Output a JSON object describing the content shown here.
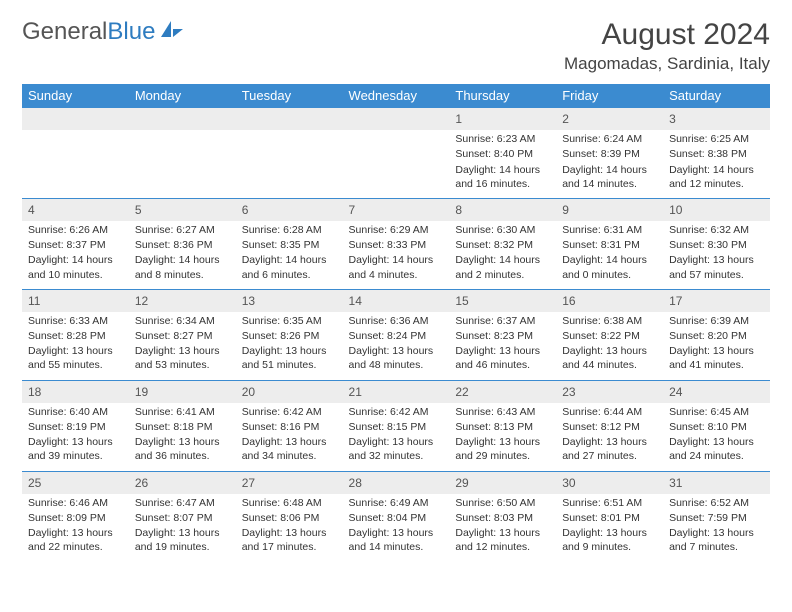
{
  "logo": {
    "text_part1": "General",
    "text_part2": "Blue"
  },
  "header": {
    "month_title": "August 2024",
    "location": "Magomadas, Sardinia, Italy"
  },
  "colors": {
    "header_bg": "#3b8bd0",
    "header_text": "#ffffff",
    "daynum_bg": "#ededed",
    "border": "#3b8bd0",
    "text": "#333333",
    "logo_gray": "#555555",
    "logo_blue": "#2e7cc0"
  },
  "weekdays": [
    "Sunday",
    "Monday",
    "Tuesday",
    "Wednesday",
    "Thursday",
    "Friday",
    "Saturday"
  ],
  "weeks": [
    [
      {},
      {},
      {},
      {},
      {
        "num": "1",
        "sunrise": "Sunrise: 6:23 AM",
        "sunset": "Sunset: 8:40 PM",
        "daylight": "Daylight: 14 hours and 16 minutes."
      },
      {
        "num": "2",
        "sunrise": "Sunrise: 6:24 AM",
        "sunset": "Sunset: 8:39 PM",
        "daylight": "Daylight: 14 hours and 14 minutes."
      },
      {
        "num": "3",
        "sunrise": "Sunrise: 6:25 AM",
        "sunset": "Sunset: 8:38 PM",
        "daylight": "Daylight: 14 hours and 12 minutes."
      }
    ],
    [
      {
        "num": "4",
        "sunrise": "Sunrise: 6:26 AM",
        "sunset": "Sunset: 8:37 PM",
        "daylight": "Daylight: 14 hours and 10 minutes."
      },
      {
        "num": "5",
        "sunrise": "Sunrise: 6:27 AM",
        "sunset": "Sunset: 8:36 PM",
        "daylight": "Daylight: 14 hours and 8 minutes."
      },
      {
        "num": "6",
        "sunrise": "Sunrise: 6:28 AM",
        "sunset": "Sunset: 8:35 PM",
        "daylight": "Daylight: 14 hours and 6 minutes."
      },
      {
        "num": "7",
        "sunrise": "Sunrise: 6:29 AM",
        "sunset": "Sunset: 8:33 PM",
        "daylight": "Daylight: 14 hours and 4 minutes."
      },
      {
        "num": "8",
        "sunrise": "Sunrise: 6:30 AM",
        "sunset": "Sunset: 8:32 PM",
        "daylight": "Daylight: 14 hours and 2 minutes."
      },
      {
        "num": "9",
        "sunrise": "Sunrise: 6:31 AM",
        "sunset": "Sunset: 8:31 PM",
        "daylight": "Daylight: 14 hours and 0 minutes."
      },
      {
        "num": "10",
        "sunrise": "Sunrise: 6:32 AM",
        "sunset": "Sunset: 8:30 PM",
        "daylight": "Daylight: 13 hours and 57 minutes."
      }
    ],
    [
      {
        "num": "11",
        "sunrise": "Sunrise: 6:33 AM",
        "sunset": "Sunset: 8:28 PM",
        "daylight": "Daylight: 13 hours and 55 minutes."
      },
      {
        "num": "12",
        "sunrise": "Sunrise: 6:34 AM",
        "sunset": "Sunset: 8:27 PM",
        "daylight": "Daylight: 13 hours and 53 minutes."
      },
      {
        "num": "13",
        "sunrise": "Sunrise: 6:35 AM",
        "sunset": "Sunset: 8:26 PM",
        "daylight": "Daylight: 13 hours and 51 minutes."
      },
      {
        "num": "14",
        "sunrise": "Sunrise: 6:36 AM",
        "sunset": "Sunset: 8:24 PM",
        "daylight": "Daylight: 13 hours and 48 minutes."
      },
      {
        "num": "15",
        "sunrise": "Sunrise: 6:37 AM",
        "sunset": "Sunset: 8:23 PM",
        "daylight": "Daylight: 13 hours and 46 minutes."
      },
      {
        "num": "16",
        "sunrise": "Sunrise: 6:38 AM",
        "sunset": "Sunset: 8:22 PM",
        "daylight": "Daylight: 13 hours and 44 minutes."
      },
      {
        "num": "17",
        "sunrise": "Sunrise: 6:39 AM",
        "sunset": "Sunset: 8:20 PM",
        "daylight": "Daylight: 13 hours and 41 minutes."
      }
    ],
    [
      {
        "num": "18",
        "sunrise": "Sunrise: 6:40 AM",
        "sunset": "Sunset: 8:19 PM",
        "daylight": "Daylight: 13 hours and 39 minutes."
      },
      {
        "num": "19",
        "sunrise": "Sunrise: 6:41 AM",
        "sunset": "Sunset: 8:18 PM",
        "daylight": "Daylight: 13 hours and 36 minutes."
      },
      {
        "num": "20",
        "sunrise": "Sunrise: 6:42 AM",
        "sunset": "Sunset: 8:16 PM",
        "daylight": "Daylight: 13 hours and 34 minutes."
      },
      {
        "num": "21",
        "sunrise": "Sunrise: 6:42 AM",
        "sunset": "Sunset: 8:15 PM",
        "daylight": "Daylight: 13 hours and 32 minutes."
      },
      {
        "num": "22",
        "sunrise": "Sunrise: 6:43 AM",
        "sunset": "Sunset: 8:13 PM",
        "daylight": "Daylight: 13 hours and 29 minutes."
      },
      {
        "num": "23",
        "sunrise": "Sunrise: 6:44 AM",
        "sunset": "Sunset: 8:12 PM",
        "daylight": "Daylight: 13 hours and 27 minutes."
      },
      {
        "num": "24",
        "sunrise": "Sunrise: 6:45 AM",
        "sunset": "Sunset: 8:10 PM",
        "daylight": "Daylight: 13 hours and 24 minutes."
      }
    ],
    [
      {
        "num": "25",
        "sunrise": "Sunrise: 6:46 AM",
        "sunset": "Sunset: 8:09 PM",
        "daylight": "Daylight: 13 hours and 22 minutes."
      },
      {
        "num": "26",
        "sunrise": "Sunrise: 6:47 AM",
        "sunset": "Sunset: 8:07 PM",
        "daylight": "Daylight: 13 hours and 19 minutes."
      },
      {
        "num": "27",
        "sunrise": "Sunrise: 6:48 AM",
        "sunset": "Sunset: 8:06 PM",
        "daylight": "Daylight: 13 hours and 17 minutes."
      },
      {
        "num": "28",
        "sunrise": "Sunrise: 6:49 AM",
        "sunset": "Sunset: 8:04 PM",
        "daylight": "Daylight: 13 hours and 14 minutes."
      },
      {
        "num": "29",
        "sunrise": "Sunrise: 6:50 AM",
        "sunset": "Sunset: 8:03 PM",
        "daylight": "Daylight: 13 hours and 12 minutes."
      },
      {
        "num": "30",
        "sunrise": "Sunrise: 6:51 AM",
        "sunset": "Sunset: 8:01 PM",
        "daylight": "Daylight: 13 hours and 9 minutes."
      },
      {
        "num": "31",
        "sunrise": "Sunrise: 6:52 AM",
        "sunset": "Sunset: 7:59 PM",
        "daylight": "Daylight: 13 hours and 7 minutes."
      }
    ]
  ]
}
